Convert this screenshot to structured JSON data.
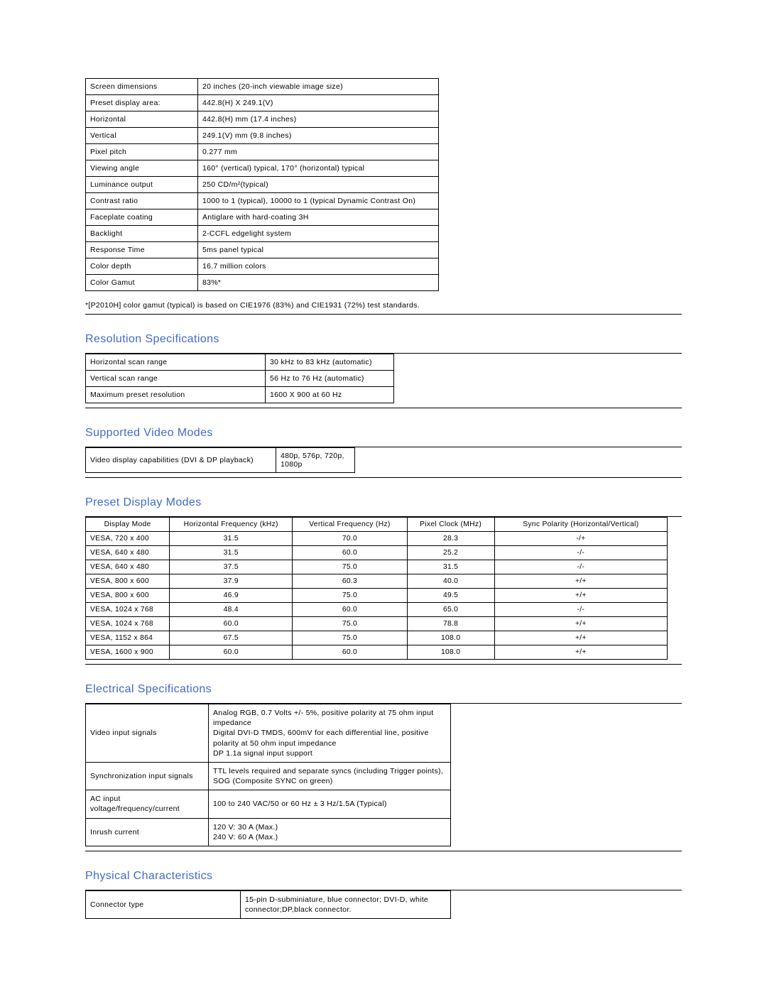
{
  "top_spec": {
    "rows": [
      {
        "label": "Screen dimensions",
        "value": "20 inches (20-inch viewable image size)"
      },
      {
        "label": "Preset display area:",
        "value": "442.8(H) X 249.1(V)"
      },
      {
        "label": "Horizontal",
        "value": "442.8(H) mm (17.4 inches)"
      },
      {
        "label": "Vertical",
        "value": "249.1(V) mm (9.8 inches)"
      },
      {
        "label": "Pixel pitch",
        "value": "0.277 mm"
      },
      {
        "label": "Viewing angle",
        "value": "160° (vertical) typical, 170° (horizontal) typical"
      },
      {
        "label": "Luminance output",
        "value": "250 CD/m²(typical)"
      },
      {
        "label": "Contrast ratio",
        "value": "1000 to 1 (typical), 10000 to 1 (typical Dynamic Contrast On)"
      },
      {
        "label": "Faceplate coating",
        "value": "Antiglare with hard-coating 3H"
      },
      {
        "label": "Backlight",
        "value": "2-CCFL edgelight system"
      },
      {
        "label": "Response Time",
        "value": "5ms panel typical"
      },
      {
        "label": "Color depth",
        "value": "16.7 million colors"
      },
      {
        "label": "Color Gamut",
        "value": "83%*"
      }
    ]
  },
  "footnote": "*[P2010H] color gamut (typical) is based on CIE1976 (83%) and CIE1931 (72%) test standards.",
  "resolution": {
    "title": "Resolution Specifications",
    "rows": [
      {
        "label": "Horizontal scan range",
        "value": "30 kHz to 83 kHz (automatic)"
      },
      {
        "label": "Vertical scan range",
        "value": "56 Hz to 76 Hz (automatic)"
      },
      {
        "label": "Maximum preset resolution",
        "value": "1600 X 900 at 60 Hz"
      }
    ]
  },
  "video_modes": {
    "title": "Supported Video Modes",
    "rows": [
      {
        "label": "Video display capabilities (DVI & DP playback)",
        "value": "480p, 576p, 720p, 1080p"
      }
    ]
  },
  "preset": {
    "title": "Preset Display Modes",
    "columns": [
      "Display Mode",
      "Horizontal Frequency (kHz)",
      "Vertical Frequency (Hz)",
      "Pixel Clock (MHz)",
      "Sync Polarity (Horizontal/Vertical)"
    ],
    "rows": [
      [
        "VESA, 720 x 400",
        "31.5",
        "70.0",
        "28.3",
        "-/+"
      ],
      [
        "VESA, 640 x 480",
        "31.5",
        "60.0",
        "25.2",
        "-/-"
      ],
      [
        "VESA, 640 x 480",
        "37.5",
        "75.0",
        "31.5",
        "-/-"
      ],
      [
        "VESA, 800 x 600",
        "37.9",
        "60.3",
        "40.0",
        "+/+"
      ],
      [
        "VESA, 800 x 600",
        "46.9",
        "75.0",
        "49.5",
        "+/+"
      ],
      [
        "VESA, 1024 x 768",
        "48.4",
        "60.0",
        "65.0",
        "-/-"
      ],
      [
        "VESA, 1024 x 768",
        "60.0",
        "75.0",
        "78.8",
        "+/+"
      ],
      [
        "VESA, 1152 x 864",
        "67.5",
        "75.0",
        "108.0",
        "+/+"
      ],
      [
        "VESA, 1600 x 900",
        "60.0",
        "60.0",
        "108.0",
        "+/+"
      ]
    ]
  },
  "electrical": {
    "title": "Electrical Specifications",
    "rows": [
      {
        "label": "Video input signals",
        "value": "Analog RGB, 0.7 Volts +/- 5%, positive polarity at 75 ohm input impedance\nDigital DVI-D TMDS, 600mV for each differential line, positive polarity at 50 ohm input impedance\nDP 1.1a signal input support"
      },
      {
        "label": "Synchronization input signals",
        "value": "TTL levels required and separate syncs (including Trigger points), SOG (Composite SYNC on green)"
      },
      {
        "label": "AC input voltage/frequency/current",
        "value": "100 to 240 VAC/50 or 60 Hz ± 3 Hz/1.5A (Typical)"
      },
      {
        "label": "Inrush current",
        "value": "120 V: 30 A (Max.)\n240 V: 60 A (Max.)"
      }
    ]
  },
  "physical": {
    "title": "Physical Characteristics",
    "rows": [
      {
        "label": "Connector type",
        "value": "15-pin D-subminiature, blue connector; DVI-D, white connector;DP,black connector."
      }
    ]
  }
}
